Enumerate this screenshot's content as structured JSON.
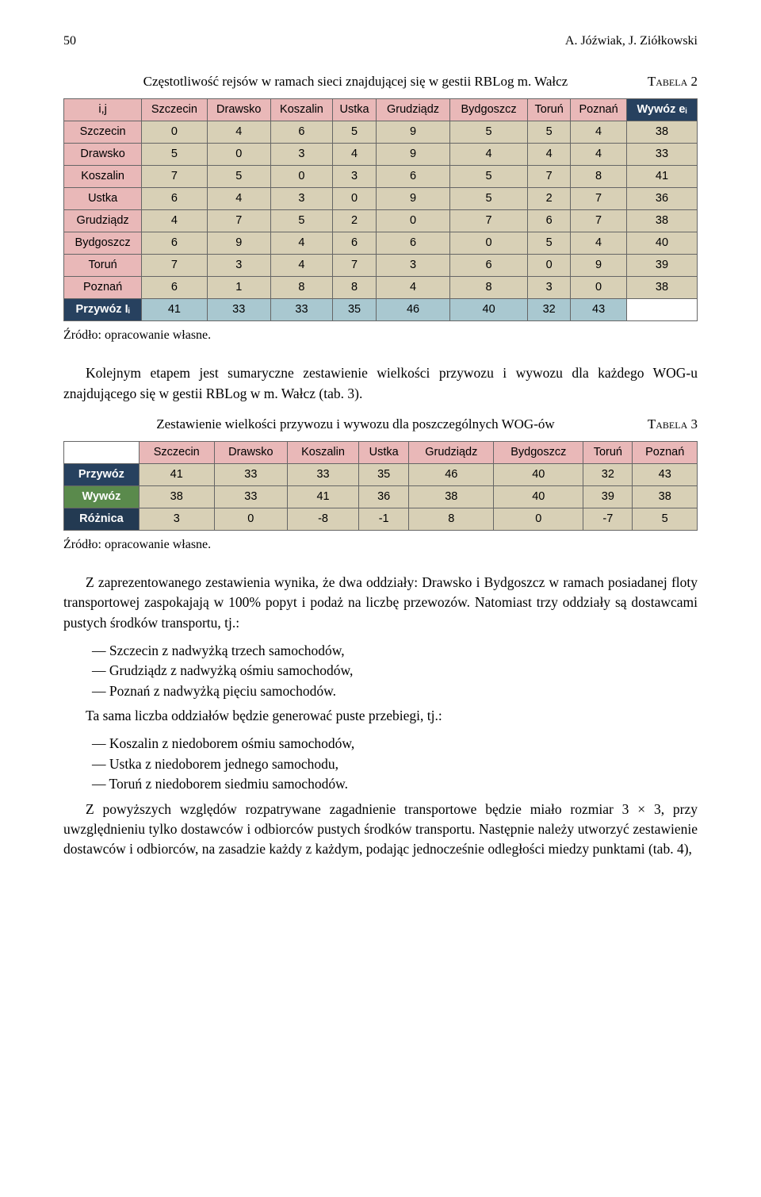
{
  "header": {
    "pageno": "50",
    "authors": "A. Jóźwiak, J. Ziółkowski"
  },
  "caption1": {
    "text": "Częstotliwość rejsów w ramach sieci znajdującej się w gestii RBLog m. Wałcz",
    "label": "Tabela 2"
  },
  "table1": {
    "cols": [
      "i,j",
      "Szczecin",
      "Drawsko",
      "Koszalin",
      "Ustka",
      "Grudziądz",
      "Bydgoszcz",
      "Toruń",
      "Poznań",
      "Wywóz eᵢ"
    ],
    "rows": [
      {
        "h": "Szczecin",
        "v": [
          "0",
          "4",
          "6",
          "5",
          "9",
          "5",
          "5",
          "4"
        ],
        "e": "38"
      },
      {
        "h": "Drawsko",
        "v": [
          "5",
          "0",
          "3",
          "4",
          "9",
          "4",
          "4",
          "4"
        ],
        "e": "33"
      },
      {
        "h": "Koszalin",
        "v": [
          "7",
          "5",
          "0",
          "3",
          "6",
          "5",
          "7",
          "8"
        ],
        "e": "41"
      },
      {
        "h": "Ustka",
        "v": [
          "6",
          "4",
          "3",
          "0",
          "9",
          "5",
          "2",
          "7"
        ],
        "e": "36"
      },
      {
        "h": "Grudziądz",
        "v": [
          "4",
          "7",
          "5",
          "2",
          "0",
          "7",
          "6",
          "7"
        ],
        "e": "38"
      },
      {
        "h": "Bydgoszcz",
        "v": [
          "6",
          "9",
          "4",
          "6",
          "6",
          "0",
          "5",
          "4"
        ],
        "e": "40"
      },
      {
        "h": "Toruń",
        "v": [
          "7",
          "3",
          "4",
          "7",
          "3",
          "6",
          "0",
          "9"
        ],
        "e": "39"
      },
      {
        "h": "Poznań",
        "v": [
          "6",
          "1",
          "8",
          "8",
          "4",
          "8",
          "3",
          "0"
        ],
        "e": "38"
      }
    ],
    "footer": {
      "h": "Przywóz Iᵢ",
      "v": [
        "41",
        "33",
        "33",
        "35",
        "46",
        "40",
        "32",
        "43"
      ],
      "e": ""
    }
  },
  "src1": "Źródło: opracowanie własne.",
  "para1": "Kolejnym etapem jest sumaryczne zestawienie wielkości przywozu i wywozu dla każdego WOG-u znajdującego się w gestii RBLog w m. Wałcz (tab. 3).",
  "caption2": {
    "text": "Zestawienie wielkości przywozu i wywozu dla poszczególnych WOG-ów",
    "label": "Tabela 3"
  },
  "table2": {
    "cols": [
      "",
      "Szczecin",
      "Drawsko",
      "Koszalin",
      "Ustka",
      "Grudziądz",
      "Bydgoszcz",
      "Toruń",
      "Poznań"
    ],
    "rows": [
      {
        "h": "Przywóz",
        "cls": "hdr-row-blue",
        "v": [
          "41",
          "33",
          "33",
          "35",
          "46",
          "40",
          "32",
          "43"
        ]
      },
      {
        "h": "Wywóz",
        "cls": "hdr-row-green",
        "v": [
          "38",
          "33",
          "41",
          "36",
          "38",
          "40",
          "39",
          "38"
        ]
      },
      {
        "h": "Różnica",
        "cls": "hdr-row-darker",
        "v": [
          "3",
          "0",
          "-8",
          "-1",
          "8",
          "0",
          "-7",
          "5"
        ]
      }
    ]
  },
  "src2": "Źródło: opracowanie własne.",
  "para2": "Z zaprezentowanego zestawienia wynika, że dwa oddziały: Drawsko i Bydgoszcz w ramach posiadanej floty transportowej zaspokajają w 100% popyt i podaż na liczbę przewozów. Natomiast trzy oddziały są dostawcami pustych środków transportu, tj.:",
  "list1": [
    "— Szczecin z nadwyżką trzech samochodów,",
    "— Grudziądz z nadwyżką ośmiu samochodów,",
    "— Poznań z nadwyżką pięciu samochodów."
  ],
  "para3": "Ta sama liczba oddziałów będzie generować puste przebiegi, tj.:",
  "list2": [
    "— Koszalin z niedoborem ośmiu samochodów,",
    "— Ustka z niedoborem jednego samochodu,",
    "— Toruń z niedoborem siedmiu samochodów."
  ],
  "para4": "Z powyższych względów rozpatrywane zagadnienie transportowe będzie miało rozmiar 3 × 3, przy uwzględnieniu tylko dostawców i odbiorców pustych środków transportu. Następnie należy utworzyć zestawienie dostawców i odbiorców, na zasadzie każdy z każdym, podając jednocześnie odległości miedzy punktami (tab. 4),"
}
